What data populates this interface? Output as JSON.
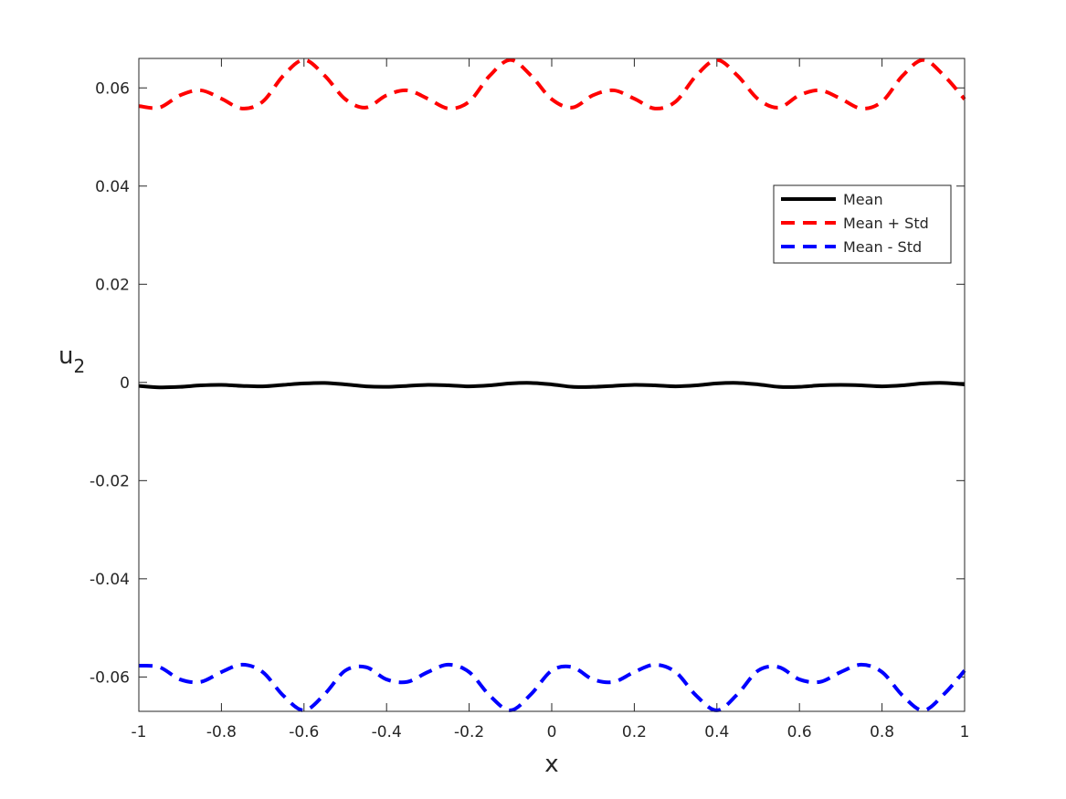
{
  "chart_data": {
    "type": "line",
    "title": "",
    "xlabel": "x",
    "ylabel_main": "u",
    "ylabel_sub": "2",
    "xlim": [
      -1,
      1
    ],
    "ylim": [
      -0.067,
      0.066
    ],
    "x_ticks": [
      -1,
      -0.8,
      -0.6,
      -0.4,
      -0.2,
      0,
      0.2,
      0.4,
      0.6,
      0.8,
      1
    ],
    "x_tick_labels": [
      "-1",
      "-0.8",
      "-0.6",
      "-0.4",
      "-0.2",
      "0",
      "0.2",
      "0.4",
      "0.6",
      "0.8",
      "1"
    ],
    "y_ticks": [
      -0.06,
      -0.04,
      -0.02,
      0,
      0.02,
      0.04,
      0.06
    ],
    "y_tick_labels": [
      "-0.06",
      "-0.04",
      "-0.02",
      "0",
      "0.02",
      "0.04",
      "0.06"
    ],
    "grid": false,
    "legend_position": "upper-right",
    "x": [
      -1,
      -0.95,
      -0.9,
      -0.85,
      -0.8,
      -0.75,
      -0.7,
      -0.65,
      -0.6,
      -0.55,
      -0.5,
      -0.45,
      -0.4,
      -0.35,
      -0.3,
      -0.25,
      -0.2,
      -0.15,
      -0.1,
      -0.05,
      0,
      0.05,
      0.1,
      0.15,
      0.2,
      0.25,
      0.3,
      0.35,
      0.4,
      0.45,
      0.5,
      0.55,
      0.6,
      0.65,
      0.7,
      0.75,
      0.8,
      0.85,
      0.9,
      0.95,
      1
    ],
    "series": [
      {
        "name": "Mean",
        "color": "#000000",
        "style": "solid",
        "values": [
          -0.0007,
          -0.001,
          -0.0009,
          -0.0006,
          -0.0005,
          -0.0007,
          -0.0008,
          -0.0005,
          -0.0002,
          -0.0001,
          -0.0004,
          -0.0008,
          -0.0009,
          -0.0007,
          -0.0005,
          -0.0006,
          -0.0008,
          -0.0006,
          -0.0002,
          -0.0001,
          -0.0004,
          -0.0009,
          -0.0009,
          -0.0007,
          -0.0005,
          -0.0006,
          -0.0008,
          -0.0006,
          -0.0002,
          -0.0001,
          -0.0004,
          -0.0009,
          -0.0009,
          -0.0006,
          -0.0005,
          -0.0006,
          -0.0008,
          -0.0006,
          -0.0002,
          -0.0001,
          -0.0004
        ]
      },
      {
        "name": "Mean + Std",
        "color": "#ff0000",
        "style": "dashed",
        "values": [
          0.0563,
          0.056,
          0.0585,
          0.0595,
          0.0578,
          0.0558,
          0.0572,
          0.0625,
          0.0657,
          0.0625,
          0.0577,
          0.056,
          0.0585,
          0.0595,
          0.0578,
          0.0558,
          0.0572,
          0.0625,
          0.0657,
          0.0625,
          0.0577,
          0.056,
          0.0585,
          0.0595,
          0.0578,
          0.0558,
          0.0572,
          0.0625,
          0.0657,
          0.0625,
          0.0577,
          0.056,
          0.0585,
          0.0595,
          0.0578,
          0.0558,
          0.0572,
          0.0625,
          0.0657,
          0.0625,
          0.0577
        ]
      },
      {
        "name": "Mean - Std",
        "color": "#0000ff",
        "style": "dashed",
        "values": [
          -0.0577,
          -0.058,
          -0.0605,
          -0.061,
          -0.059,
          -0.0575,
          -0.059,
          -0.0638,
          -0.0668,
          -0.0635,
          -0.0587,
          -0.058,
          -0.0605,
          -0.061,
          -0.059,
          -0.0575,
          -0.059,
          -0.0638,
          -0.0668,
          -0.0635,
          -0.0587,
          -0.058,
          -0.0605,
          -0.061,
          -0.059,
          -0.0575,
          -0.059,
          -0.0638,
          -0.0668,
          -0.0635,
          -0.0587,
          -0.058,
          -0.0605,
          -0.061,
          -0.059,
          -0.0575,
          -0.059,
          -0.0638,
          -0.0668,
          -0.0635,
          -0.0587
        ]
      }
    ]
  }
}
